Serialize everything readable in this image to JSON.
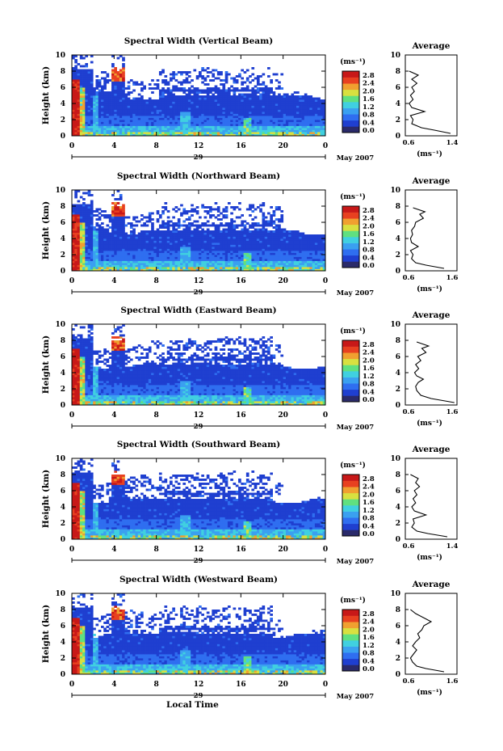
{
  "chart_data": [
    {
      "type": "heatmap",
      "title": "Spectral Width (Vertical Beam)",
      "ylabel": "Height (km)",
      "x_ticks": [
        "0",
        "4",
        "8",
        "12",
        "16",
        "20",
        "0"
      ],
      "y_ticks": [
        "0",
        "2",
        "4",
        "6",
        "8",
        "10"
      ],
      "xlim": [
        0,
        24
      ],
      "ylim": [
        0,
        10
      ],
      "date_label": "29",
      "month_label": "May 2007",
      "colorbar": {
        "unit": "(ms⁻¹)",
        "ticks": [
          "0.0",
          "0.4",
          "0.8",
          "1.2",
          "1.6",
          "2.0",
          "2.4",
          "2.8"
        ]
      },
      "average": {
        "title": "Average",
        "xlim": [
          0.6,
          1.4
        ],
        "x_ticks": [
          "0.6",
          "1.4"
        ],
        "xlabel": "(ms⁻¹)",
        "profile": [
          [
            1.3,
            0.3
          ],
          [
            1.05,
            0.7
          ],
          [
            0.85,
            1.0
          ],
          [
            0.7,
            1.5
          ],
          [
            0.72,
            2.0
          ],
          [
            0.68,
            2.5
          ],
          [
            0.9,
            3.0
          ],
          [
            0.7,
            3.5
          ],
          [
            0.66,
            4.0
          ],
          [
            0.72,
            4.5
          ],
          [
            0.68,
            5.0
          ],
          [
            0.74,
            5.5
          ],
          [
            0.7,
            6.0
          ],
          [
            0.78,
            6.5
          ],
          [
            0.7,
            7.0
          ],
          [
            0.8,
            7.5
          ],
          [
            0.66,
            8.0
          ]
        ]
      }
    },
    {
      "type": "heatmap",
      "title": "Spectral Width (Northward Beam)",
      "ylabel": "Height (km)",
      "x_ticks": [
        "0",
        "4",
        "8",
        "12",
        "16",
        "20",
        "0"
      ],
      "y_ticks": [
        "0",
        "2",
        "4",
        "6",
        "8",
        "10"
      ],
      "xlim": [
        0,
        24
      ],
      "ylim": [
        0,
        10
      ],
      "date_label": "29",
      "month_label": "May 2007",
      "colorbar": {
        "unit": "(ms⁻¹)",
        "ticks": [
          "0.0",
          "0.4",
          "0.8",
          "1.2",
          "1.6",
          "2.0",
          "2.4",
          "2.8"
        ]
      },
      "average": {
        "title": "Average",
        "xlim": [
          0.6,
          1.6
        ],
        "x_ticks": [
          "0.6",
          "1.6"
        ],
        "xlabel": "(ms⁻¹)",
        "profile": [
          [
            1.35,
            0.3
          ],
          [
            1.0,
            0.7
          ],
          [
            0.8,
            1.0
          ],
          [
            0.72,
            1.5
          ],
          [
            0.75,
            2.0
          ],
          [
            0.7,
            2.5
          ],
          [
            0.85,
            3.0
          ],
          [
            0.72,
            3.5
          ],
          [
            0.7,
            4.0
          ],
          [
            0.74,
            4.5
          ],
          [
            0.72,
            5.0
          ],
          [
            0.78,
            5.5
          ],
          [
            0.8,
            6.0
          ],
          [
            0.95,
            6.5
          ],
          [
            0.88,
            7.0
          ],
          [
            0.98,
            7.3
          ],
          [
            0.75,
            7.8
          ]
        ]
      }
    },
    {
      "type": "heatmap",
      "title": "Spectral Width (Eastward Beam)",
      "ylabel": "Height (km)",
      "x_ticks": [
        "0",
        "4",
        "8",
        "12",
        "16",
        "20",
        "0"
      ],
      "y_ticks": [
        "0",
        "2",
        "4",
        "6",
        "8",
        "10"
      ],
      "xlim": [
        0,
        24
      ],
      "ylim": [
        0,
        10
      ],
      "date_label": "29",
      "month_label": "May 2007",
      "colorbar": {
        "unit": "(ms⁻¹)",
        "ticks": [
          "0.0",
          "0.4",
          "0.8",
          "1.2",
          "1.6",
          "2.0",
          "2.4",
          "2.8"
        ]
      },
      "average": {
        "title": "Average",
        "xlim": [
          0.6,
          1.6
        ],
        "x_ticks": [
          "0.6",
          "1.6"
        ],
        "xlabel": "(ms⁻¹)",
        "profile": [
          [
            1.55,
            0.3
          ],
          [
            1.1,
            0.8
          ],
          [
            0.9,
            1.2
          ],
          [
            0.82,
            1.8
          ],
          [
            0.8,
            2.3
          ],
          [
            0.85,
            2.8
          ],
          [
            0.95,
            3.2
          ],
          [
            0.82,
            3.6
          ],
          [
            0.78,
            4.0
          ],
          [
            0.86,
            4.5
          ],
          [
            0.8,
            5.0
          ],
          [
            0.9,
            5.5
          ],
          [
            0.84,
            6.0
          ],
          [
            1.0,
            6.5
          ],
          [
            0.92,
            7.0
          ],
          [
            1.05,
            7.3
          ],
          [
            0.82,
            7.8
          ]
        ]
      }
    },
    {
      "type": "heatmap",
      "title": "Spectral Width (Southward Beam)",
      "ylabel": "Height (km)",
      "x_ticks": [
        "0",
        "4",
        "8",
        "12",
        "16",
        "20",
        "0"
      ],
      "y_ticks": [
        "0",
        "2",
        "4",
        "6",
        "8",
        "10"
      ],
      "xlim": [
        0,
        24
      ],
      "ylim": [
        0,
        10
      ],
      "date_label": "29",
      "month_label": "May 2007",
      "colorbar": {
        "unit": "(ms⁻¹)",
        "ticks": [
          "0.0",
          "0.4",
          "0.8",
          "1.2",
          "1.6",
          "2.0",
          "2.4",
          "2.8"
        ]
      },
      "average": {
        "title": "Average",
        "xlim": [
          0.6,
          1.4
        ],
        "x_ticks": [
          "0.6",
          "1.4"
        ],
        "xlabel": "(ms⁻¹)",
        "profile": [
          [
            1.25,
            0.3
          ],
          [
            0.95,
            0.7
          ],
          [
            0.78,
            1.0
          ],
          [
            0.7,
            1.5
          ],
          [
            0.74,
            2.0
          ],
          [
            0.72,
            2.5
          ],
          [
            0.92,
            3.0
          ],
          [
            0.74,
            3.5
          ],
          [
            0.7,
            4.0
          ],
          [
            0.76,
            4.5
          ],
          [
            0.72,
            5.0
          ],
          [
            0.78,
            5.5
          ],
          [
            0.74,
            6.0
          ],
          [
            0.82,
            6.5
          ],
          [
            0.76,
            7.0
          ],
          [
            0.8,
            7.5
          ],
          [
            0.68,
            8.0
          ]
        ]
      }
    },
    {
      "type": "heatmap",
      "title": "Spectral Width (Westward Beam)",
      "ylabel": "Height (km)",
      "x_ticks": [
        "0",
        "4",
        "8",
        "12",
        "16",
        "20",
        "0"
      ],
      "y_ticks": [
        "0",
        "2",
        "4",
        "6",
        "8",
        "10"
      ],
      "xlim": [
        0,
        24
      ],
      "ylim": [
        0,
        10
      ],
      "date_label": "29",
      "month_label": "May 2007",
      "colorbar": {
        "unit": "(ms⁻¹)",
        "ticks": [
          "0.0",
          "0.4",
          "0.8",
          "1.2",
          "1.6",
          "2.0",
          "2.4",
          "2.8"
        ]
      },
      "average": {
        "title": "Average",
        "xlim": [
          0.6,
          1.6
        ],
        "x_ticks": [
          "0.6",
          "1.6"
        ],
        "xlabel": "(ms⁻¹)",
        "profile": [
          [
            1.35,
            0.3
          ],
          [
            1.0,
            0.7
          ],
          [
            0.82,
            1.0
          ],
          [
            0.74,
            1.5
          ],
          [
            0.7,
            2.0
          ],
          [
            0.76,
            2.5
          ],
          [
            0.82,
            3.0
          ],
          [
            0.74,
            3.5
          ],
          [
            0.8,
            4.0
          ],
          [
            0.88,
            4.5
          ],
          [
            0.84,
            5.0
          ],
          [
            0.92,
            5.5
          ],
          [
            0.96,
            6.0
          ],
          [
            1.1,
            6.5
          ],
          [
            0.95,
            7.0
          ],
          [
            0.8,
            7.5
          ],
          [
            0.7,
            8.0
          ]
        ]
      }
    }
  ],
  "footer": {
    "xlabel": "Local Time"
  },
  "colors": {
    "scale": [
      "#2a2a6a",
      "#1f3fd0",
      "#2f6ef0",
      "#3aa0f0",
      "#40d0e0",
      "#60e080",
      "#d8e040",
      "#f0a030",
      "#e84020",
      "#c81818"
    ],
    "background": "#ffffff"
  }
}
